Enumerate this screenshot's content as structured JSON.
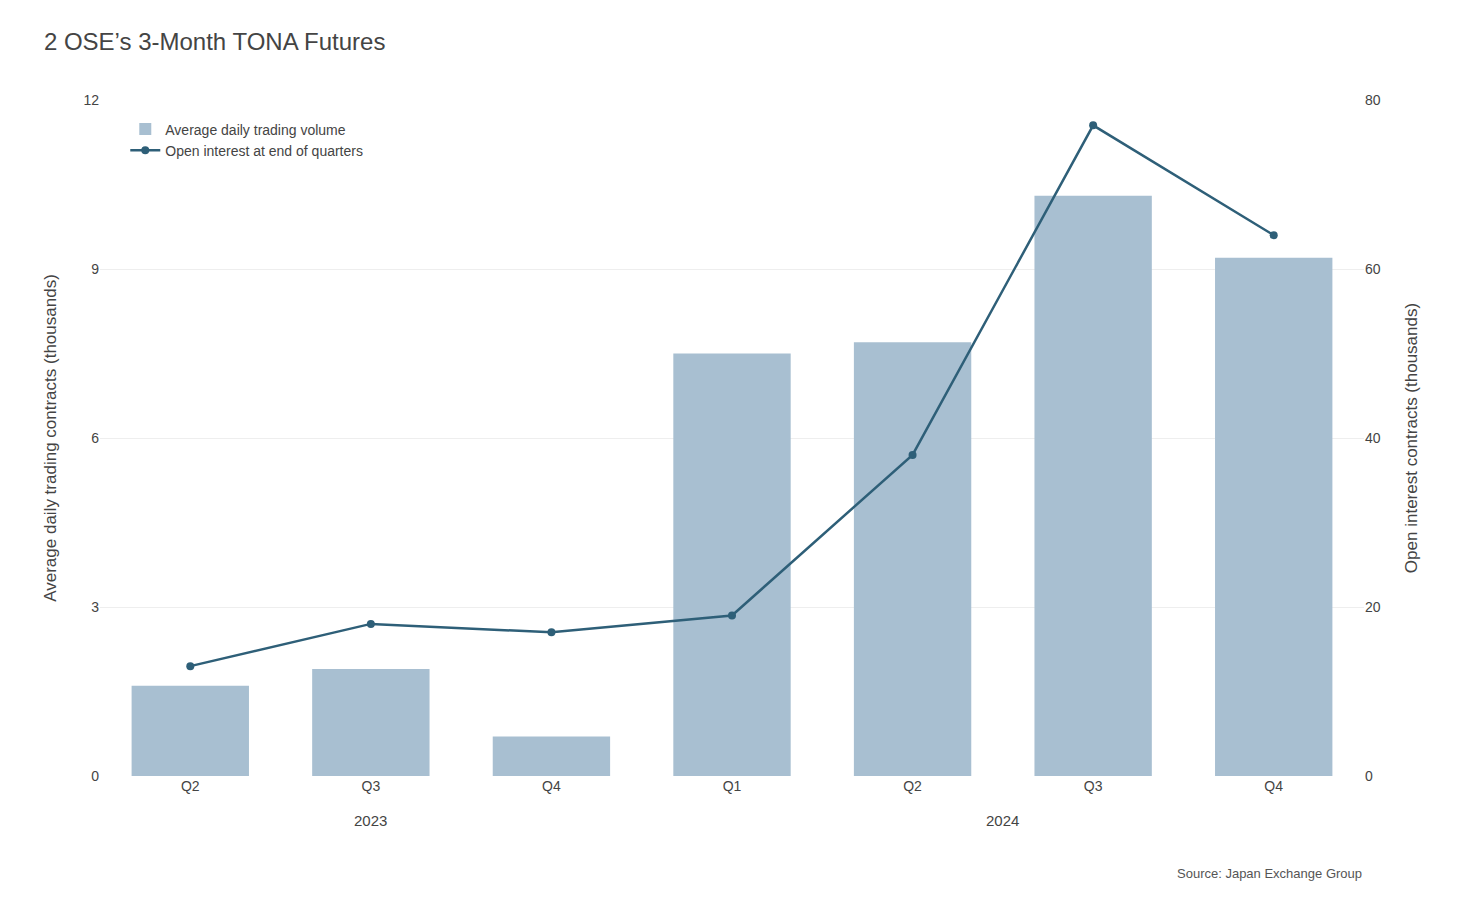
{
  "chart_data": {
    "type": "bar",
    "title": "2 OSE’s 3-Month TONA Futures",
    "categories": [
      "Q2",
      "Q3",
      "Q4",
      "Q1",
      "Q2",
      "Q3",
      "Q4"
    ],
    "series": [
      {
        "name": "Average daily trading volume",
        "type": "bar",
        "color": "#a8bfd1",
        "values": [
          1.6,
          1.9,
          0.7,
          7.5,
          7.7,
          10.3,
          9.2
        ]
      },
      {
        "name": "Open interest at end of quarters",
        "type": "line",
        "axis": "y2",
        "color": "#2e5f78",
        "marker": "circle",
        "values": [
          13,
          18,
          17,
          19,
          38,
          77,
          64
        ]
      }
    ],
    "ylabel": "Average daily trading contracts (thousands)",
    "y2label": "Open interest contracts (thousands)",
    "ylim": [
      0,
      12
    ],
    "yticks": [
      0,
      3,
      6,
      9,
      12
    ],
    "y2lim": [
      0,
      80
    ],
    "y2ticks": [
      0,
      20,
      40,
      60,
      80
    ],
    "annotations": [
      {
        "text": "2023",
        "x": 1.0
      },
      {
        "text": "2024",
        "x": 4.5
      },
      {
        "text": "Source: Japan Exchange Group"
      }
    ],
    "grid": true,
    "legend": "upper left"
  }
}
